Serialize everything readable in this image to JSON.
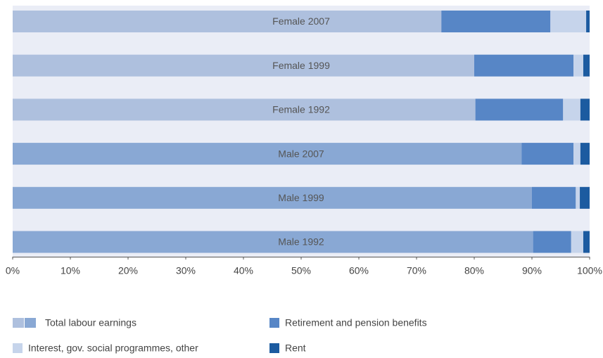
{
  "chart_data": {
    "type": "stacked-barh",
    "categories": [
      "Female 2007",
      "Female 1999",
      "Female 1992",
      "Male 2007",
      "Male 1999",
      "Male 1992"
    ],
    "series": [
      {
        "name": "Total labour earnings",
        "colors": [
          "#aec0de",
          "#aec0de",
          "#aec0de",
          "#89a8d4",
          "#89a8d4",
          "#89a8d4"
        ],
        "values": [
          74.3,
          80.0,
          80.2,
          88.2,
          90.0,
          90.2
        ]
      },
      {
        "name": "Retirement and pension benefits",
        "color": "#5786c6",
        "values": [
          18.9,
          17.2,
          15.2,
          9.0,
          7.6,
          6.6
        ]
      },
      {
        "name": "Interest, gov. social programmes, other",
        "color": "#c6d4eb",
        "values": [
          6.2,
          1.7,
          3.0,
          1.2,
          0.7,
          2.1
        ]
      },
      {
        "name": "Rent",
        "color": "#1c5ba0",
        "values": [
          0.6,
          1.1,
          1.6,
          1.6,
          1.7,
          1.1
        ]
      }
    ],
    "xlim": [
      0,
      100
    ],
    "xticks": [
      {
        "value": 0,
        "label": "0%"
      },
      {
        "value": 10,
        "label": "10%"
      },
      {
        "value": 20,
        "label": "20%"
      },
      {
        "value": 30,
        "label": "30%"
      },
      {
        "value": 40,
        "label": "40%"
      },
      {
        "value": 50,
        "label": "50%"
      },
      {
        "value": 60,
        "label": "60%"
      },
      {
        "value": 70,
        "label": "70%"
      },
      {
        "value": 80,
        "label": "80%"
      },
      {
        "value": 90,
        "label": "90%"
      },
      {
        "value": 100,
        "label": "100%"
      }
    ]
  }
}
